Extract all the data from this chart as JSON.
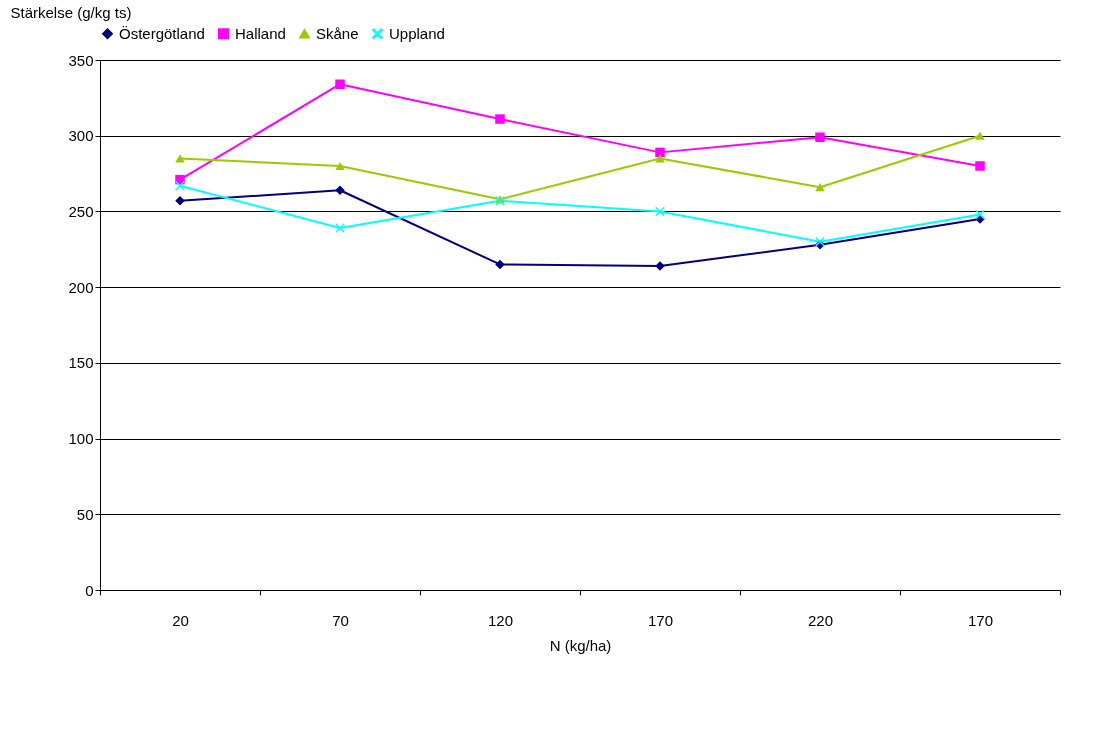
{
  "chart_data": {
    "type": "line",
    "ylabel": "Stärkelse (g/kg ts)",
    "xlabel": "N (kg/ha)",
    "categories": [
      "20",
      "70",
      "120",
      "170",
      "220",
      "170"
    ],
    "series": [
      {
        "name": "Östergötland",
        "color": "#000080",
        "marker": "diamond",
        "values": [
          257,
          264,
          215,
          214,
          228,
          245
        ]
      },
      {
        "name": "Halland",
        "color": "#ff00ff",
        "marker": "square",
        "values": [
          271,
          334,
          311,
          289,
          299,
          280
        ]
      },
      {
        "name": "Skåne",
        "color": "#99cc00",
        "marker": "triangle",
        "values": [
          285,
          280,
          258,
          285,
          266,
          300
        ]
      },
      {
        "name": "Uppland",
        "color": "#00ffff",
        "marker": "cross",
        "values": [
          267,
          239,
          257,
          250,
          230,
          248
        ]
      }
    ],
    "ylim": [
      0,
      350
    ],
    "yticks": [
      0,
      50,
      100,
      150,
      200,
      250,
      300,
      350
    ],
    "grid": "y",
    "legend": "top"
  }
}
